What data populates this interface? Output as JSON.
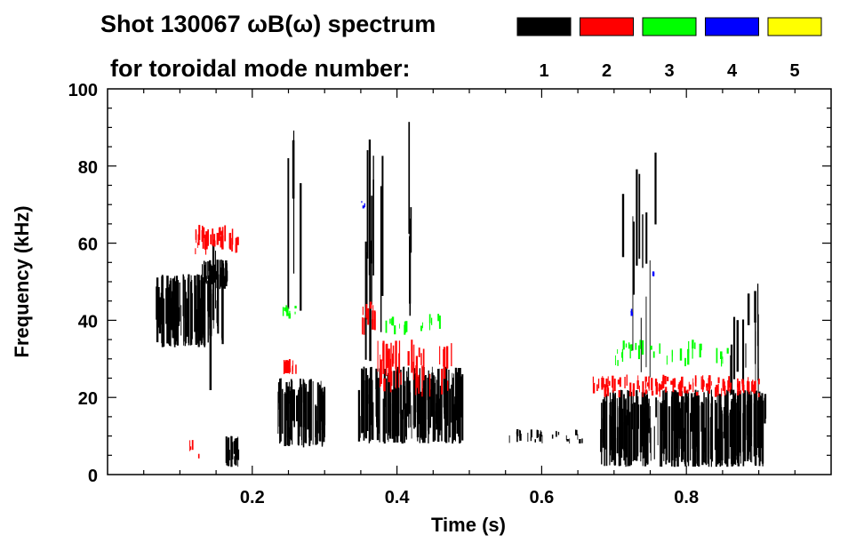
{
  "chart_data": {
    "type": "heatmap",
    "title_line1": "Shot 130067 ωB(ω) spectrum",
    "title_line2": "for toroidal mode number:",
    "xlabel": "Time (s)",
    "ylabel": "Frequency (kHz)",
    "xlim": [
      0,
      1.0
    ],
    "ylim": [
      0,
      100
    ],
    "xticks": [
      "0.2",
      "0.4",
      "0.6",
      "0.8"
    ],
    "xtick_values": [
      0.2,
      0.4,
      0.6,
      0.8
    ],
    "yticks": [
      "0",
      "20",
      "40",
      "60",
      "80",
      "100"
    ],
    "ytick_values": [
      0,
      20,
      40,
      60,
      80,
      100
    ],
    "legend": [
      {
        "mode": "1",
        "color": "#000000"
      },
      {
        "mode": "2",
        "color": "#ff0000"
      },
      {
        "mode": "3",
        "color": "#00ff00"
      },
      {
        "mode": "4",
        "color": "#0000ff"
      },
      {
        "mode": "5",
        "color": "#ffff00"
      }
    ],
    "regions": [
      {
        "mode": 1,
        "t": [
          0.065,
          0.16
        ],
        "f": [
          33,
          52
        ],
        "density": 1.0
      },
      {
        "mode": 1,
        "t": [
          0.13,
          0.165
        ],
        "f": [
          48,
          56
        ],
        "density": 0.8
      },
      {
        "mode": 1,
        "t": [
          0.16,
          0.18
        ],
        "f": [
          2,
          10
        ],
        "density": 0.9
      },
      {
        "mode": 1,
        "t": [
          0.235,
          0.3
        ],
        "f": [
          7,
          25
        ],
        "density": 1.0
      },
      {
        "mode": 1,
        "t": [
          0.345,
          0.49
        ],
        "f": [
          8,
          28
        ],
        "density": 1.0
      },
      {
        "mode": 1,
        "t": [
          0.55,
          0.66
        ],
        "f": [
          8,
          12
        ],
        "density": 0.25
      },
      {
        "mode": 1,
        "t": [
          0.68,
          0.91
        ],
        "f": [
          2,
          22
        ],
        "density": 1.0
      },
      {
        "mode": 1,
        "t": [
          0.14,
          0.15
        ],
        "f": [
          20,
          90
        ],
        "density": 0.3
      },
      {
        "mode": 1,
        "t": [
          0.355,
          0.38
        ],
        "f": [
          28,
          93
        ],
        "density": 0.4
      },
      {
        "mode": 1,
        "t": [
          0.4,
          0.42
        ],
        "f": [
          30,
          92
        ],
        "density": 0.2
      },
      {
        "mode": 1,
        "t": [
          0.71,
          0.76
        ],
        "f": [
          25,
          85
        ],
        "density": 0.2
      },
      {
        "mode": 1,
        "t": [
          0.86,
          0.9
        ],
        "f": [
          20,
          50
        ],
        "density": 0.3
      },
      {
        "mode": 1,
        "t": [
          0.24,
          0.27
        ],
        "f": [
          30,
          97
        ],
        "density": 0.12
      },
      {
        "mode": 2,
        "t": [
          0.12,
          0.18
        ],
        "f": [
          57,
          65
        ],
        "density": 0.6
      },
      {
        "mode": 2,
        "t": [
          0.24,
          0.26
        ],
        "f": [
          26,
          30
        ],
        "density": 0.8
      },
      {
        "mode": 2,
        "t": [
          0.345,
          0.37
        ],
        "f": [
          36,
          45
        ],
        "density": 0.5
      },
      {
        "mode": 2,
        "t": [
          0.37,
          0.48
        ],
        "f": [
          20,
          35
        ],
        "density": 0.35
      },
      {
        "mode": 2,
        "t": [
          0.67,
          0.9
        ],
        "f": [
          20,
          26
        ],
        "density": 0.5
      },
      {
        "mode": 2,
        "t": [
          0.11,
          0.13
        ],
        "f": [
          4,
          9
        ],
        "density": 0.2
      },
      {
        "mode": 3,
        "t": [
          0.24,
          0.26
        ],
        "f": [
          40,
          44
        ],
        "density": 0.4
      },
      {
        "mode": 3,
        "t": [
          0.38,
          0.46
        ],
        "f": [
          36,
          42
        ],
        "density": 0.2
      },
      {
        "mode": 3,
        "t": [
          0.7,
          0.86
        ],
        "f": [
          28,
          35
        ],
        "density": 0.2
      },
      {
        "mode": 4,
        "t": [
          0.35,
          0.355
        ],
        "f": [
          69,
          71
        ],
        "density": 0.5
      },
      {
        "mode": 4,
        "t": [
          0.72,
          0.725
        ],
        "f": [
          41,
          43
        ],
        "density": 0.5
      },
      {
        "mode": 4,
        "t": [
          0.75,
          0.755
        ],
        "f": [
          51,
          53
        ],
        "density": 0.5
      }
    ]
  }
}
